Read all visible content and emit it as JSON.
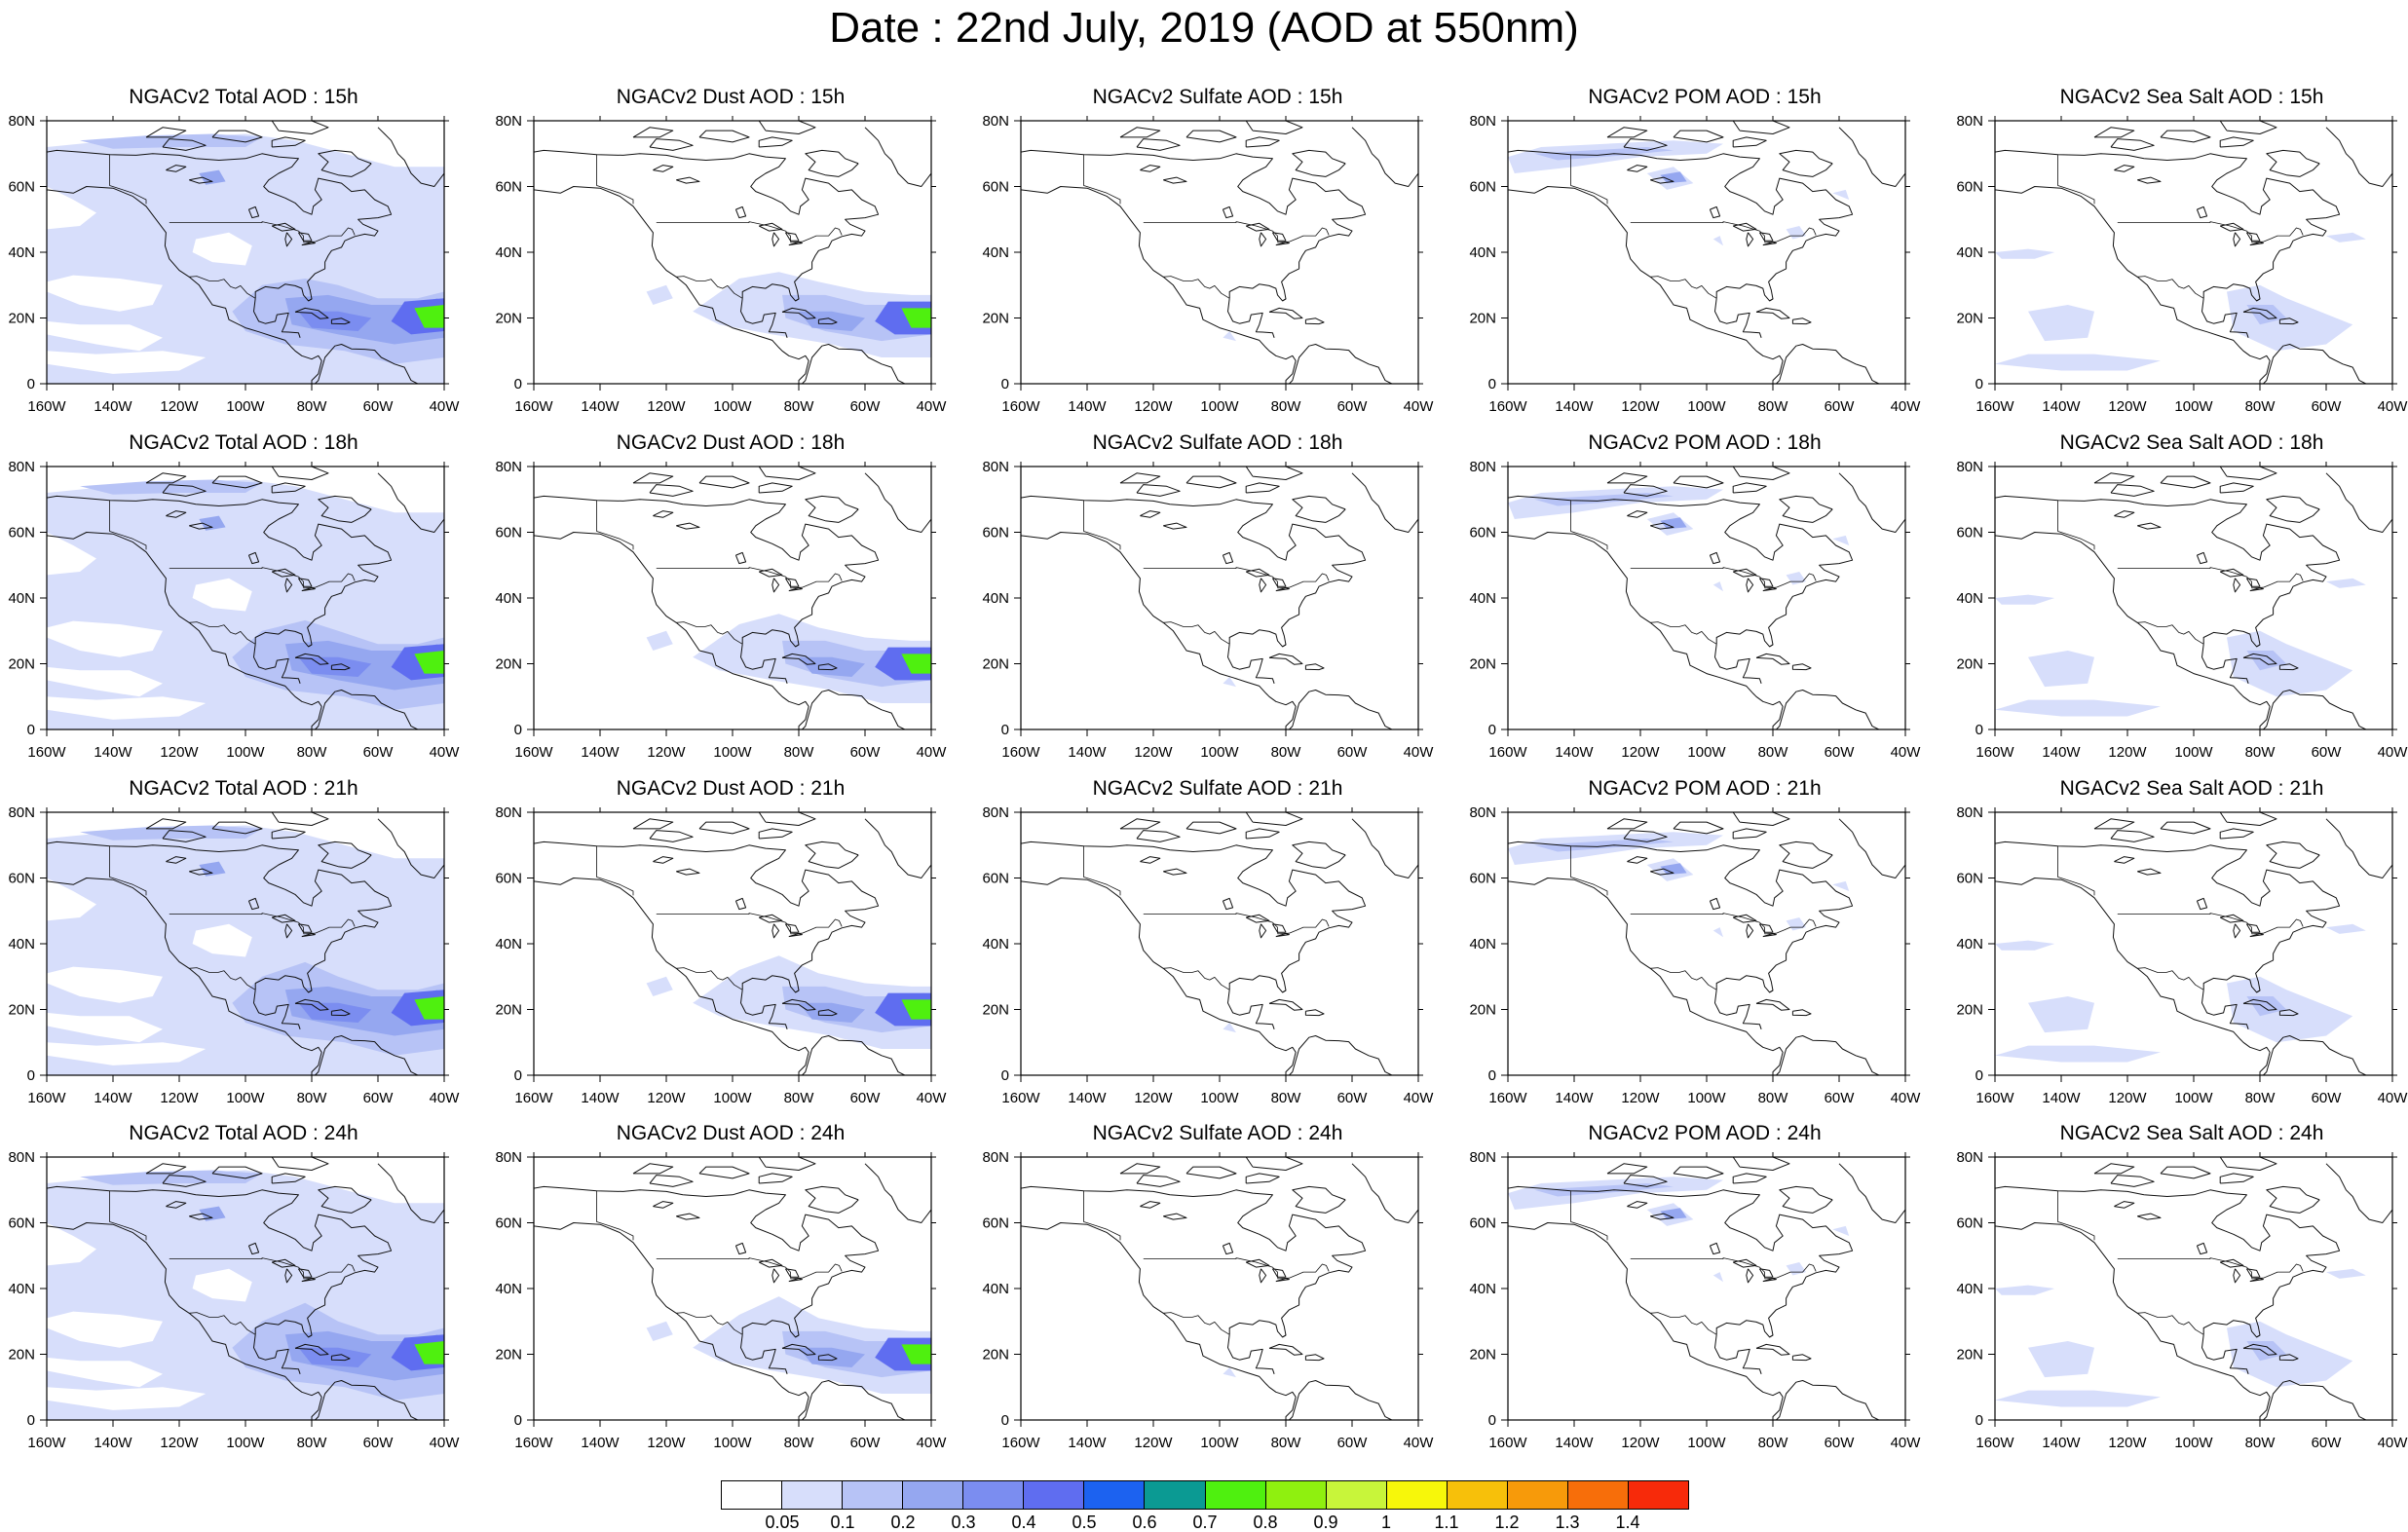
{
  "title": "Date : 22nd July, 2019 (AOD at 550nm)",
  "panels": [
    [
      "NGACv2 Total AOD : 15h",
      "NGACv2 Dust AOD : 15h",
      "NGACv2 Sulfate AOD : 15h",
      "NGACv2 POM AOD : 15h",
      "NGACv2 Sea Salt AOD : 15h"
    ],
    [
      "NGACv2 Total AOD : 18h",
      "NGACv2 Dust AOD : 18h",
      "NGACv2 Sulfate AOD : 18h",
      "NGACv2 POM AOD : 18h",
      "NGACv2 Sea Salt AOD : 18h"
    ],
    [
      "NGACv2 Total AOD : 21h",
      "NGACv2 Dust AOD : 21h",
      "NGACv2 Sulfate AOD : 21h",
      "NGACv2 POM AOD : 21h",
      "NGACv2 Sea Salt AOD : 21h"
    ],
    [
      "NGACv2 Total AOD : 24h",
      "NGACv2 Dust AOD : 24h",
      "NGACv2 Sulfate AOD : 24h",
      "NGACv2 POM AOD : 24h",
      "NGACv2 Sea Salt  AOD : 24h"
    ]
  ],
  "axes": {
    "x_ticks": [
      "160W",
      "140W",
      "120W",
      "100W",
      "80W",
      "60W",
      "40W"
    ],
    "y_ticks": [
      "80N",
      "60N",
      "40N",
      "20N",
      "0"
    ]
  },
  "colorbar": {
    "labels": [
      "0.05",
      "0.1",
      "0.2",
      "0.3",
      "0.4",
      "0.5",
      "0.6",
      "0.7",
      "0.8",
      "0.9",
      "1",
      "1.1",
      "1.2",
      "1.3",
      "1.4"
    ],
    "colors": [
      "#ffffff",
      "#d7defb",
      "#b7c3f6",
      "#95a7f0",
      "#7b8df0",
      "#5f6df0",
      "#1c62f0",
      "#0b9a93",
      "#4ff00f",
      "#8ff00f",
      "#c8f53a",
      "#f7f70a",
      "#f7c00a",
      "#f79a0a",
      "#f76e0a",
      "#f72a0a"
    ]
  }
}
